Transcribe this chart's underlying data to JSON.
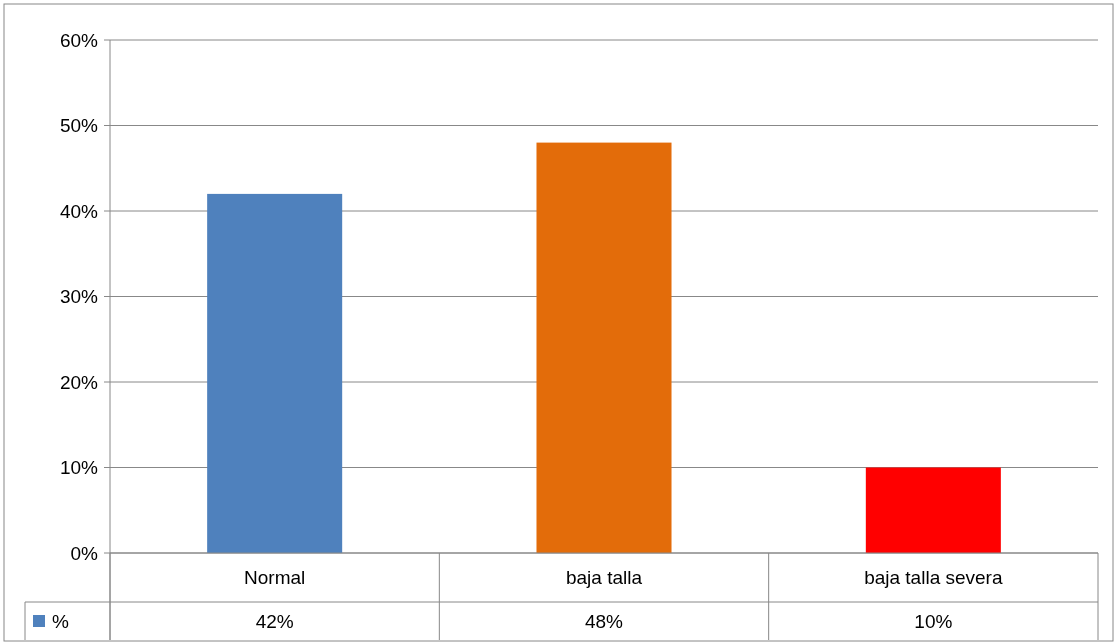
{
  "chart_data": {
    "type": "bar",
    "categories": [
      "Normal",
      "baja talla",
      "baja talla severa"
    ],
    "series": [
      {
        "name": "%",
        "color": "#4f81bd",
        "colors": [
          "#4f81bd",
          "#e36c0a",
          "#ff0000"
        ],
        "values": [
          42,
          48,
          10
        ],
        "value_labels": [
          "42%",
          "48%",
          "10%"
        ]
      }
    ],
    "ylim": [
      0,
      60
    ],
    "yticks": [
      {
        "value": 0,
        "label": "0%"
      },
      {
        "value": 10,
        "label": "10%"
      },
      {
        "value": 20,
        "label": "20%"
      },
      {
        "value": 30,
        "label": "30%"
      },
      {
        "value": 40,
        "label": "40%"
      },
      {
        "value": 50,
        "label": "50%"
      },
      {
        "value": 60,
        "label": "60%"
      }
    ],
    "grid": "y",
    "legend": "bottom"
  }
}
